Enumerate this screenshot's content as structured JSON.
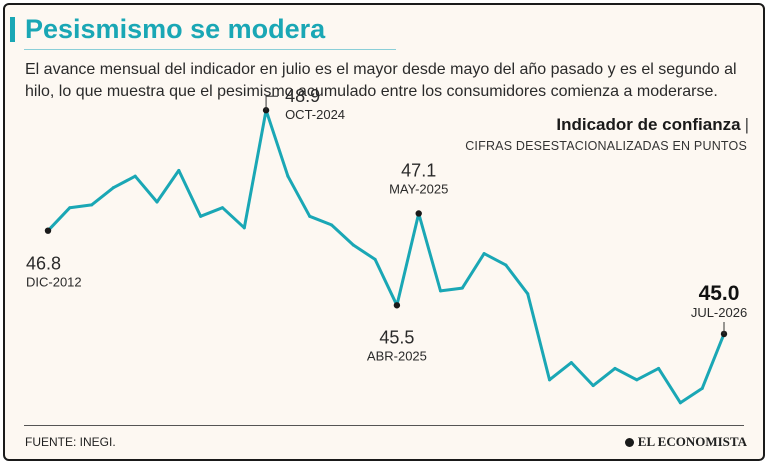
{
  "header": {
    "title": "Pesismismo se modera",
    "subtitle": "El avance mensual del indicador en julio es el mayor desde mayo del año pasado y es el segundo al hilo, lo que muestra que el pesimismo acumulado entre los consumidores comienza a moderarse."
  },
  "chart_data": {
    "type": "line",
    "title": "Indicador de confianza",
    "subtitle": "CIFRAS DESESTACIONALIZADAS EN PUNTOS",
    "series": [
      {
        "values": [
          46.8,
          47.2,
          47.25,
          47.55,
          47.75,
          47.3,
          47.85,
          47.05,
          47.2,
          46.85,
          48.9,
          47.75,
          47.05,
          46.9,
          46.55,
          46.3,
          45.5,
          47.1,
          45.75,
          45.8,
          46.4,
          46.2,
          45.7,
          44.2,
          44.5,
          44.1,
          44.4,
          44.2,
          44.4,
          43.8,
          44.05,
          45.0
        ]
      }
    ],
    "annotations": [
      {
        "index": 0,
        "value": "46.8",
        "label": "DIC-2012"
      },
      {
        "index": 10,
        "value": "48.9",
        "label": "OCT-2024"
      },
      {
        "index": 16,
        "value": "45.5",
        "label": "ABR-2025"
      },
      {
        "index": 17,
        "value": "47.1",
        "label": "MAY-2025"
      },
      {
        "index": 31,
        "value": "45.0",
        "label": "JUL-2026"
      }
    ],
    "ylim": [
      43.5,
      49.2
    ],
    "grid": false,
    "line_color": "#1aa7b5"
  },
  "footer": {
    "source": "FUENTE:  INEGI.",
    "logo": "EL ECONOMISTA"
  }
}
